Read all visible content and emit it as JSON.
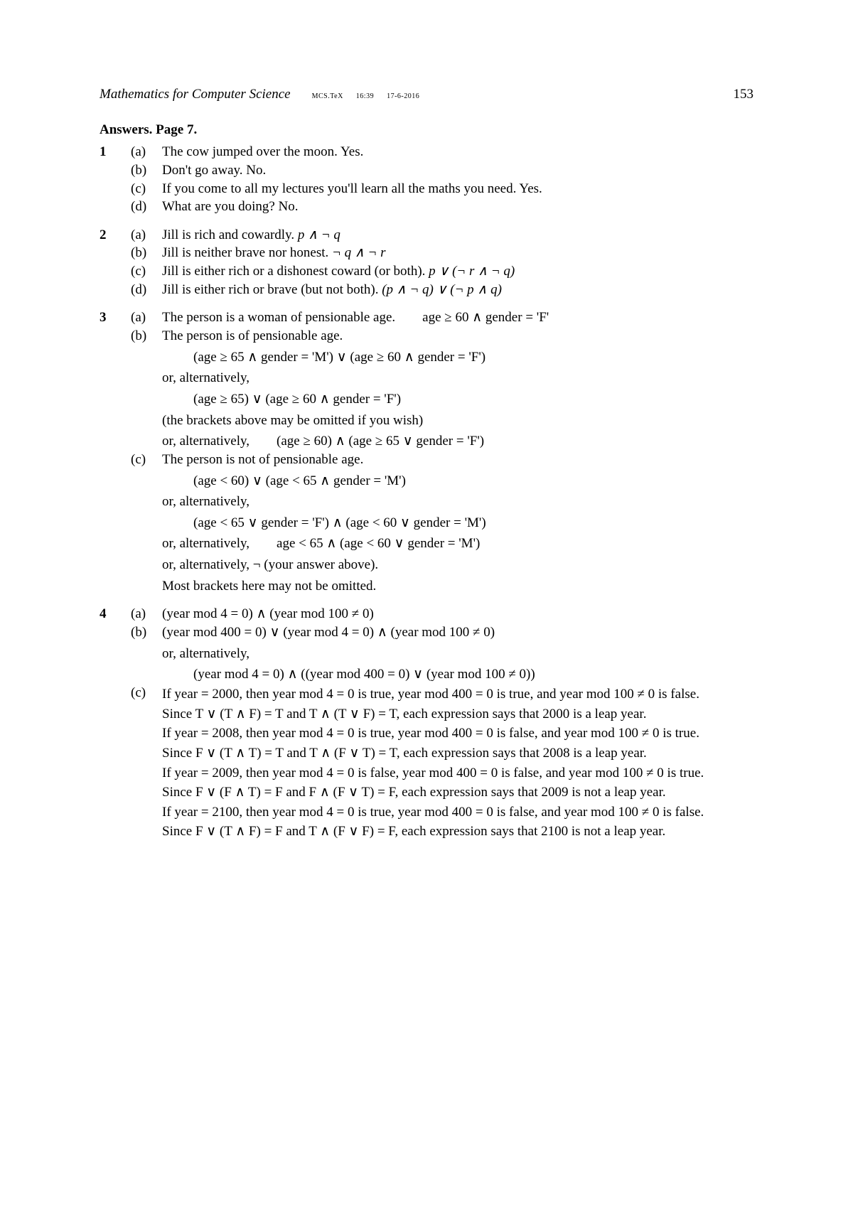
{
  "header": {
    "book_title": "Mathematics for Computer Science",
    "meta_file": "MCS.TeX",
    "meta_time": "16:39",
    "meta_date": "17-6-2016",
    "page_num": "153"
  },
  "section_title": "Answers. Page 7.",
  "problems": {
    "p1": {
      "num": "1",
      "a_label": "(a)",
      "a_text": "The cow jumped over the moon. Yes.",
      "b_label": "(b)",
      "b_text": "Don't go away. No.",
      "c_label": "(c)",
      "c_text": "If you come to all my lectures you'll learn all the maths you need. Yes.",
      "d_label": "(d)",
      "d_text": "What are you doing? No."
    },
    "p2": {
      "num": "2",
      "a_label": "(a)",
      "a_text": "Jill is rich and cowardly. ",
      "a_expr": "p ∧ ¬ q",
      "b_label": "(b)",
      "b_text": "Jill is neither brave nor honest. ",
      "b_expr": "¬ q ∧ ¬ r",
      "c_label": "(c)",
      "c_text": "Jill is either rich or a dishonest coward (or both). ",
      "c_expr": "p ∨ (¬ r ∧ ¬ q)",
      "d_label": "(d)",
      "d_text": "Jill is either rich or brave (but not both). ",
      "d_expr": "(p ∧ ¬ q) ∨ (¬ p ∧ q)"
    },
    "p3": {
      "num": "3",
      "a_label": "(a)",
      "a_text": "The person is a woman of pensionable age.        age ≥ 60 ∧ gender = 'F'",
      "b_label": "(b)",
      "b_text": "The person is of pensionable age.",
      "b_expr1": "(age ≥ 65 ∧ gender = 'M') ∨ (age ≥ 60 ∧ gender = 'F')",
      "b_alt1_pre": "or, alternatively,",
      "b_expr2": "(age ≥ 65) ∨ (age ≥ 60 ∧ gender = 'F')",
      "b_note1": "(the brackets above may be omitted if you wish)",
      "b_alt2_pre": "or, alternatively,        (age ≥ 60) ∧ (age ≥ 65 ∨ gender = 'F')",
      "c_label": "(c)",
      "c_text": "The person is not of pensionable age.",
      "c_expr1": "(age < 60) ∨ (age < 65 ∧ gender = 'M')",
      "c_alt1_pre": "or, alternatively,",
      "c_expr2": "(age < 65 ∨ gender = 'F') ∧ (age < 60 ∨ gender = 'M')",
      "c_alt2": "or, alternatively,        age < 65 ∧ (age < 60 ∨ gender = 'M')",
      "c_alt3": "or, alternatively, ¬ (your answer above).",
      "c_note": "Most brackets here may not be omitted."
    },
    "p4": {
      "num": "4",
      "a_label": "(a)",
      "a_expr": "(year mod 4 = 0) ∧ (year mod 100 ≠ 0)",
      "b_label": "(b)",
      "b_expr": "(year mod 400 = 0) ∨ (year mod 4 = 0) ∧ (year mod 100 ≠ 0)",
      "b_alt_pre": "or, alternatively,",
      "b_expr2": "(year mod 4 = 0) ∧ ((year mod 400 = 0) ∨ (year mod 100 ≠ 0))",
      "c_label": "(c)",
      "c_l1": "If year = 2000, then year mod 4 = 0 is true, year mod 400 = 0 is true, and year mod 100 ≠ 0 is false.",
      "c_l2": "Since T ∨ (T ∧ F) = T and T ∧ (T ∨ F) = T, each expression says that 2000 is a leap year.",
      "c_l3": "If year = 2008, then year mod 4 = 0 is true, year mod 400 = 0 is false, and year mod 100 ≠ 0 is true.",
      "c_l4": "Since F ∨ (T ∧ T) = T and T ∧ (F ∨ T) = T, each expression says that 2008 is a leap year.",
      "c_l5": "If year = 2009, then year mod 4 = 0 is false, year mod 400 = 0 is false, and year mod 100 ≠ 0 is true.",
      "c_l6": "Since F ∨ (F ∧ T) = F and F ∧ (F ∨ T) = F, each expression says that 2009 is not a leap year.",
      "c_l7": "If year = 2100, then year mod 4 = 0 is true, year mod 400 = 0 is false, and year mod 100 ≠ 0 is false.",
      "c_l8": "Since F ∨ (T ∧ F) = F and T ∧ (F ∨ F) = F, each expression says that 2100 is not a leap year."
    }
  }
}
